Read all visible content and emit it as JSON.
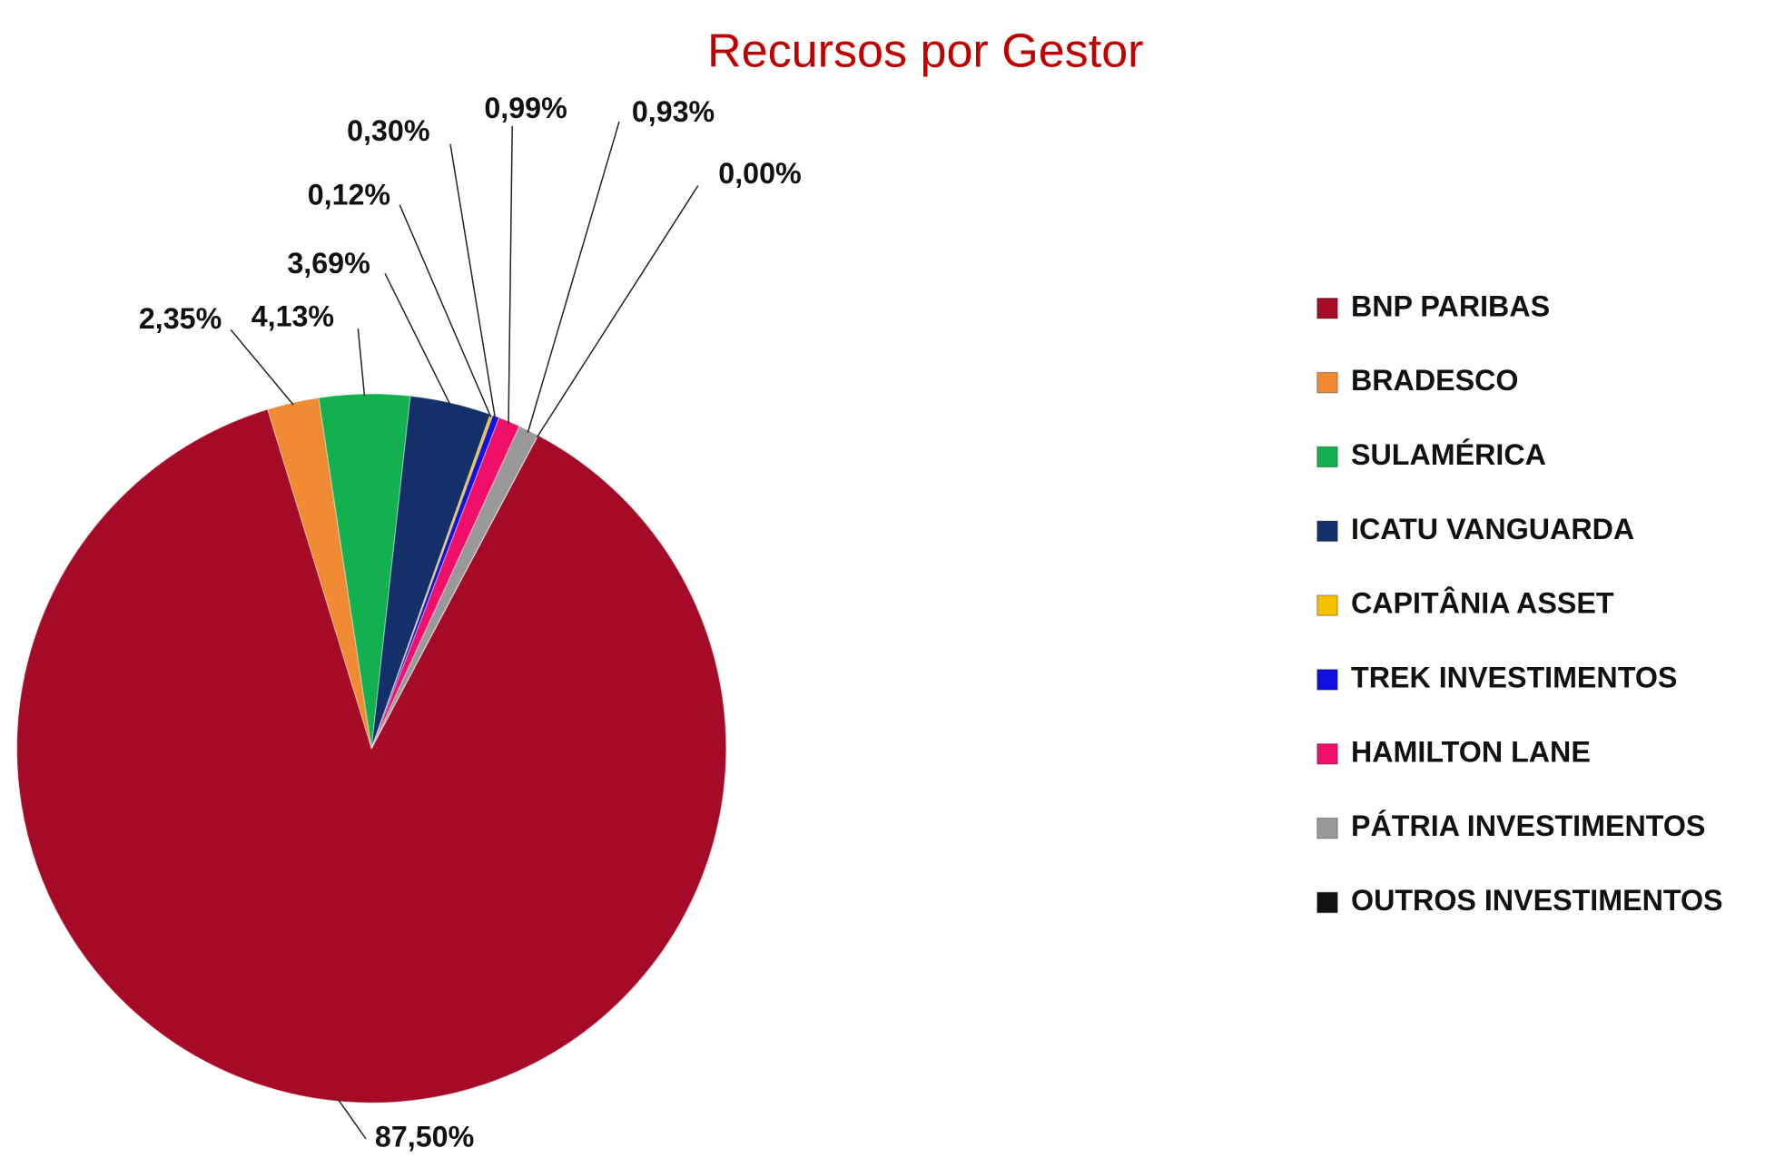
{
  "chart_data": {
    "type": "pie",
    "title": "Recursos por Gestor",
    "categories": [
      "BNP PARIBAS",
      "BRADESCO",
      "SULAMÉRICA",
      "ICATU VANGUARDA",
      "CAPITÂNIA ASSET",
      "TREK INVESTIMENTOS",
      "HAMILTON LANE",
      "PÁTRIA INVESTIMENTOS",
      "OUTROS INVESTIMENTOS"
    ],
    "values": [
      87.5,
      2.35,
      4.13,
      3.69,
      0.12,
      0.3,
      0.99,
      0.93,
      0.0
    ],
    "value_labels": [
      "87,50%",
      "2,35%",
      "4,13%",
      "3,69%",
      "0,12%",
      "0,30%",
      "0,99%",
      "0,93%",
      "0,00%"
    ],
    "colors": [
      "#a50a27",
      "#f08a33",
      "#12b04f",
      "#13306a",
      "#f5c000",
      "#1010e0",
      "#f0106a",
      "#999999",
      "#111111"
    ],
    "legend": "right"
  }
}
